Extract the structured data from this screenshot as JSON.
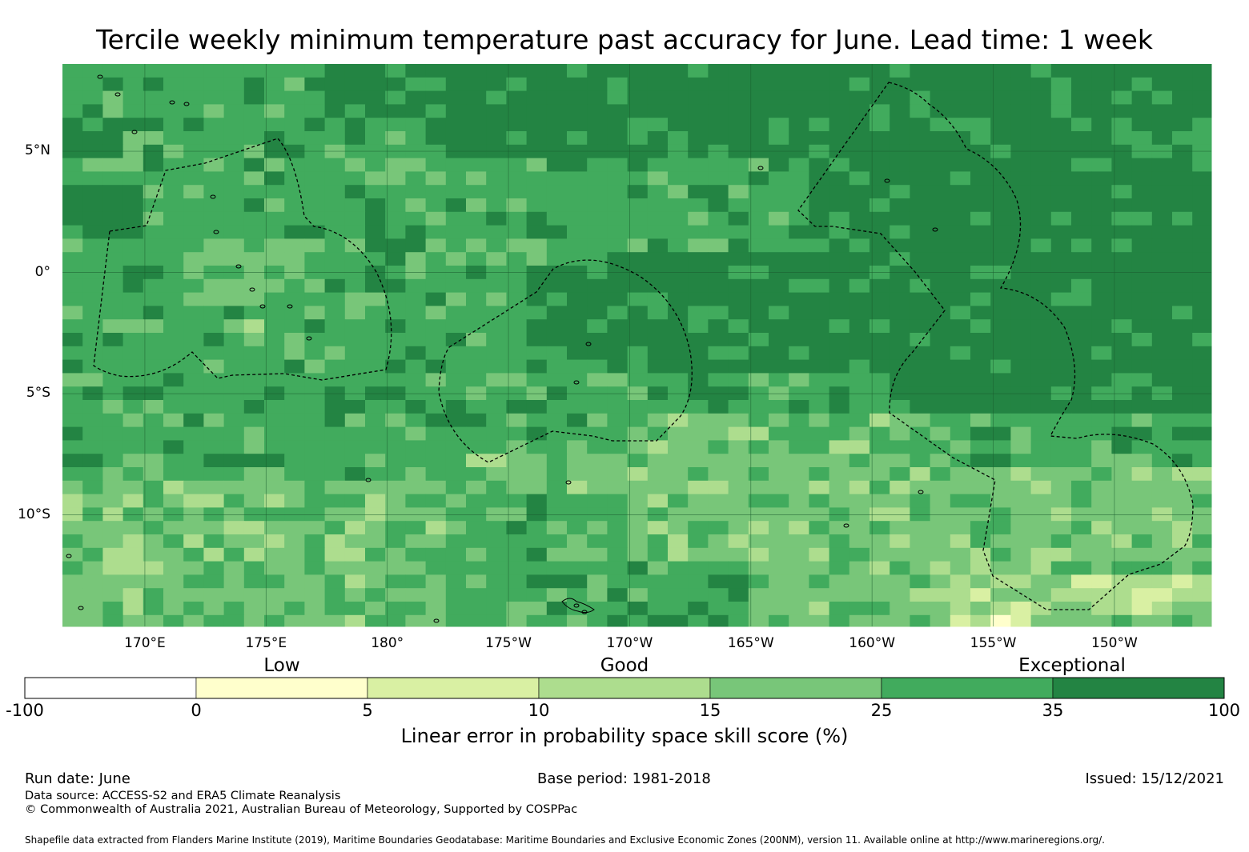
{
  "title": "Tercile weekly minimum temperature past accuracy for June. Lead time: 1 week",
  "map": {
    "lat_labels": [
      {
        "label": "5°N",
        "lat": 5
      },
      {
        "label": "0°",
        "lat": 0
      },
      {
        "label": "5°S",
        "lat": -5
      },
      {
        "label": "10°S",
        "lat": -10
      }
    ],
    "lon_labels": [
      {
        "label": "170°E",
        "lon": 170
      },
      {
        "label": "175°E",
        "lon": 175
      },
      {
        "label": "180°",
        "lon": 180
      },
      {
        "label": "175°W",
        "lon": 185
      },
      {
        "label": "170°W",
        "lon": 190
      },
      {
        "label": "165°W",
        "lon": 195
      },
      {
        "label": "160°W",
        "lon": 200
      },
      {
        "label": "155°W",
        "lon": 205
      },
      {
        "label": "150°W",
        "lon": 210
      }
    ],
    "lon_range": [
      166.6,
      214.0
    ],
    "lat_range": [
      -14.6,
      8.6
    ],
    "palette": {
      "c0": "#ffffcc",
      "c1": "#d9f0a3",
      "c2": "#addd8e",
      "c3": "#78c679",
      "c4": "#41ab5d",
      "c5": "#238443"
    }
  },
  "colorbar": {
    "categories": [
      {
        "label": "Low",
        "at": 1
      },
      {
        "label": "Good",
        "at": 3
      },
      {
        "label": "Exceptional",
        "at": 6
      }
    ],
    "ticks": [
      "-100",
      "0",
      "5",
      "10",
      "15",
      "25",
      "35",
      "100"
    ],
    "colors": [
      "#ffffff",
      "#ffffcc",
      "#d9f0a3",
      "#addd8e",
      "#78c679",
      "#41ab5d",
      "#238443"
    ],
    "label": "Linear error in probability space skill score (%)"
  },
  "footer": {
    "run_date": "Run date: June",
    "base_period": "Base period: 1981-2018",
    "issued": "Issued: 15/12/2021",
    "data_source": "Data source: ACCESS-S2 and ERA5 Climate Reanalysis",
    "copyright": "© Commonwealth of Australia 2021, Australian Bureau of Meteorology, Supported by COSPPac",
    "shapefile": "Shapefile data extracted from Flanders Marine Institute (2019), Maritime Boundaries Geodatabase: Maritime Boundaries and Exclusive Economic Zones (200NM), version 11. Available online at http://www.marineregions.org/."
  }
}
